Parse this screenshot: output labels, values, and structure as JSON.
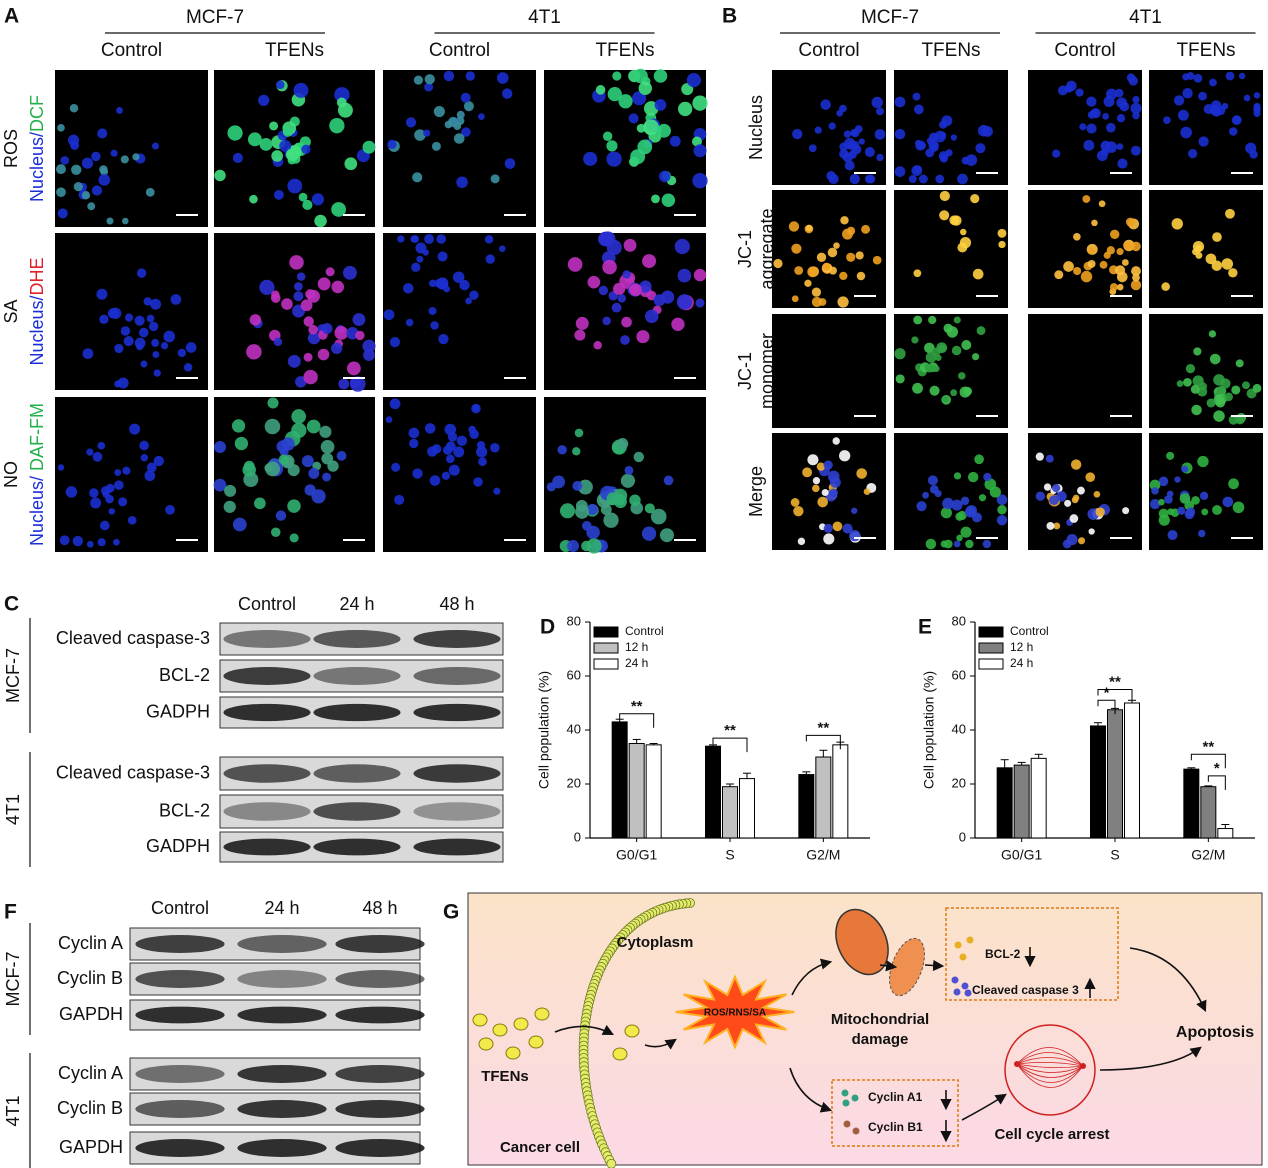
{
  "panel_labels": [
    "A",
    "B",
    "C",
    "D",
    "E",
    "F",
    "G"
  ],
  "panel_a": {
    "groups": [
      "MCF-7",
      "4T1"
    ],
    "conditions": [
      "Control",
      "TFENs"
    ],
    "rows": [
      {
        "name": "ROS",
        "stain": [
          "Nucleus/",
          "DCF"
        ]
      },
      {
        "name": "SA",
        "stain": [
          "Nucleus/",
          "DHE"
        ]
      },
      {
        "name": "NO",
        "stain": [
          "Nucleus/ ",
          "DAF-FM"
        ]
      }
    ]
  },
  "panel_b": {
    "groups": [
      "MCF-7",
      "4T1"
    ],
    "conditions": [
      "Control",
      "TFENs"
    ],
    "rows": [
      [
        "Nucleus"
      ],
      [
        "JC-1",
        "aggregate"
      ],
      [
        "JC-1",
        "monomer"
      ],
      [
        "Merge"
      ]
    ]
  },
  "panel_c": {
    "columns": [
      "Control",
      "24 h",
      "48 h"
    ],
    "groups": [
      {
        "name": "MCF-7",
        "bands": [
          "Cleaved caspase-3",
          "BCL-2",
          "GADPH"
        ]
      },
      {
        "name": "4T1",
        "bands": [
          "Cleaved caspase-3",
          "BCL-2",
          "GADPH"
        ]
      }
    ]
  },
  "panel_f": {
    "columns": [
      "Control",
      "24 h",
      "48 h"
    ],
    "groups": [
      {
        "name": "MCF-7",
        "bands": [
          "Cyclin A",
          "Cyclin B",
          "GAPDH"
        ]
      },
      {
        "name": "4T1",
        "bands": [
          "Cyclin A",
          "Cyclin B",
          "GAPDH"
        ]
      }
    ]
  },
  "panel_g": {
    "cytoplasm": "Cytoplasm",
    "tfens": "TFENs",
    "cancer_cell": "Cancer cell",
    "stress": "ROS/RNS/SA",
    "mito": [
      "Mitochondrial",
      "damage"
    ],
    "bcl2": "BCL-2",
    "caspase": "Cleaved caspase 3",
    "cyclin_a": "Cyclin A1",
    "cyclin_b": "Cyclin B1",
    "arrest": "Cell cycle arrest",
    "apoptosis": "Apoptosis"
  },
  "chart_data": [
    {
      "type": "bar",
      "ylabel": "Cell population (%)",
      "categories": [
        "G0/G1",
        "S",
        "G2/M"
      ],
      "ylim": [
        0,
        80
      ],
      "yticks": [
        0,
        20,
        40,
        60,
        80
      ],
      "legend": "upper left",
      "series": [
        {
          "name": "Control",
          "color": "#000000",
          "values": [
            43,
            34,
            23.5
          ],
          "errors": [
            1,
            0.5,
            1
          ]
        },
        {
          "name": "12 h",
          "color": "#c0c0c0",
          "values": [
            35,
            19,
            30
          ],
          "errors": [
            1.5,
            1,
            2.5
          ]
        },
        {
          "name": "24 h",
          "color": "#ffffff",
          "values": [
            34.5,
            22,
            34.5
          ],
          "errors": [
            0.5,
            2,
            1
          ]
        }
      ],
      "annotations": [
        "**",
        "**",
        "**"
      ]
    },
    {
      "type": "bar",
      "ylabel": "Cell population (%)",
      "categories": [
        "G0/G1",
        "S",
        "G2/M"
      ],
      "ylim": [
        0,
        80
      ],
      "yticks": [
        0,
        20,
        40,
        60,
        80
      ],
      "legend": "upper left",
      "series": [
        {
          "name": "Control",
          "color": "#000000",
          "values": [
            26,
            41.5,
            25.5
          ],
          "errors": [
            3,
            1.2,
            0.5
          ]
        },
        {
          "name": "12 h",
          "color": "#808080",
          "values": [
            27,
            47.5,
            19
          ],
          "errors": [
            1,
            0.5,
            0.3
          ]
        },
        {
          "name": "24 h",
          "color": "#ffffff",
          "values": [
            29.5,
            50,
            3.5
          ],
          "errors": [
            1.5,
            1,
            1.5
          ]
        }
      ],
      "annotations": [
        "*",
        "**",
        "**",
        "*"
      ]
    }
  ]
}
